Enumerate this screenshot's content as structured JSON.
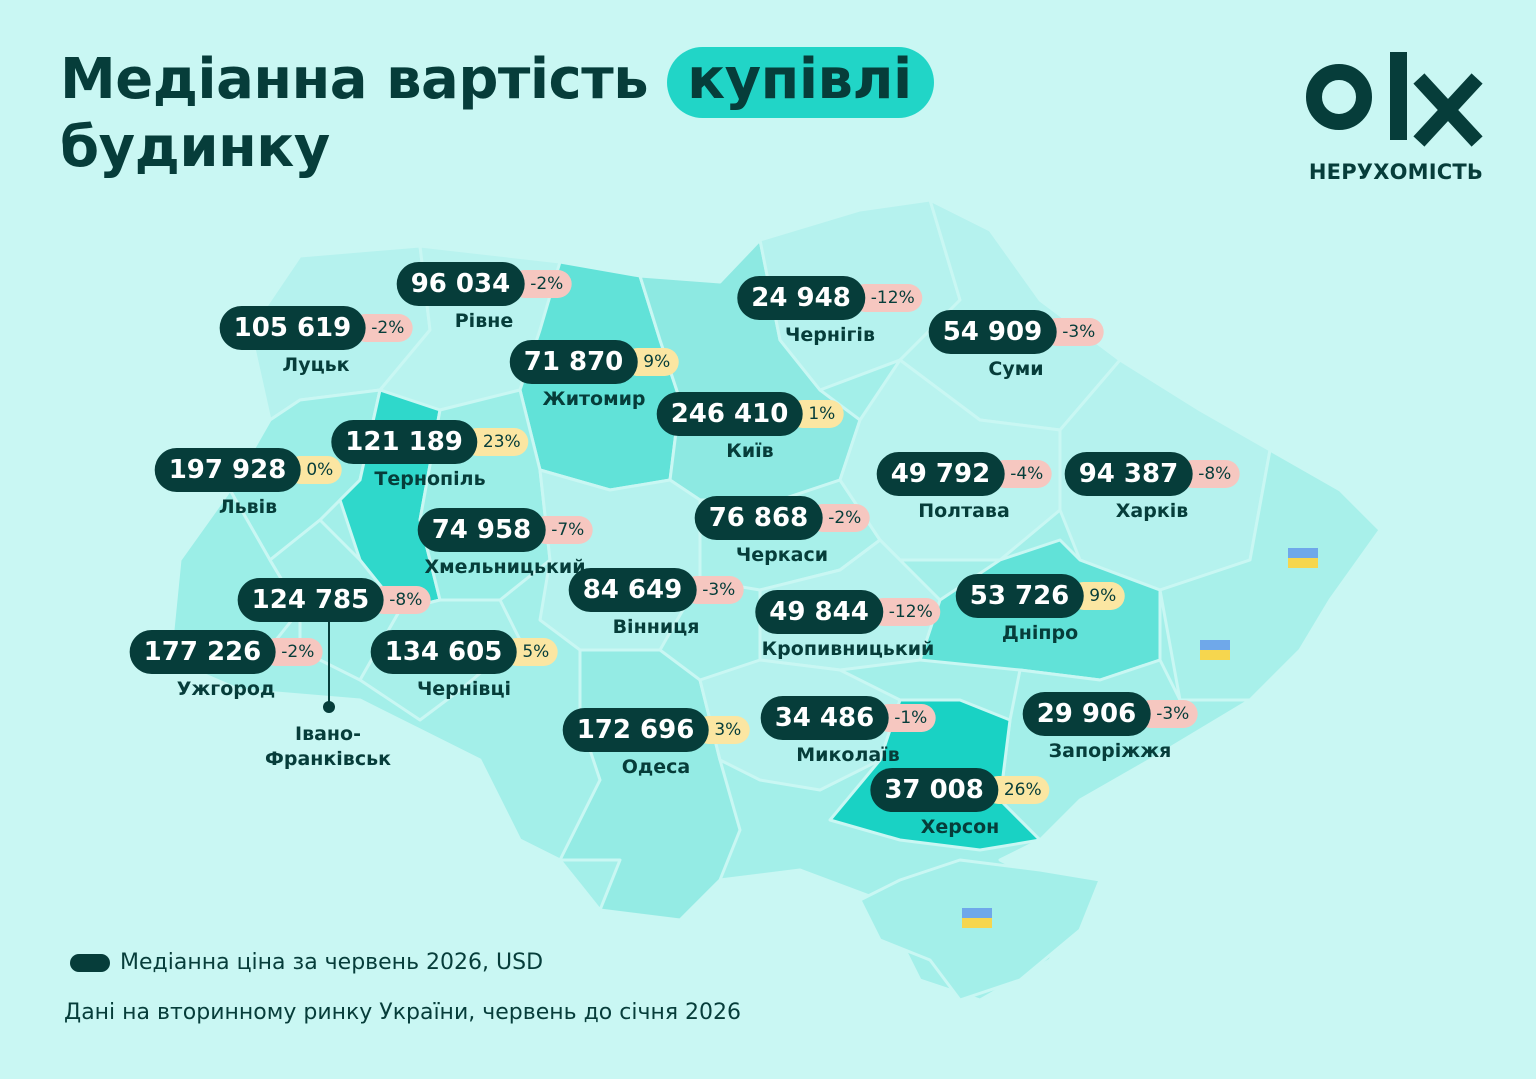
{
  "title": {
    "line1_a": "Медіанна вартість",
    "highlight": "купівлі",
    "line2": "будинку"
  },
  "logo": {
    "mark": "olx-logo",
    "subtitle": "НЕРУХОМІСТЬ"
  },
  "colors": {
    "dark": "#063d3a",
    "background": "#c9f7f3",
    "highlight": "#21d5c7",
    "negative_badge": "#f6c7c0",
    "positive_badge": "#fbe6a2"
  },
  "cities": [
    {
      "name": "Луцьк",
      "price": "105 619",
      "change": "-2%"
    },
    {
      "name": "Рівне",
      "price": "96 034",
      "change": "-2%"
    },
    {
      "name": "Житомир",
      "price": "71 870",
      "change": "9%"
    },
    {
      "name": "Чернігів",
      "price": "24 948",
      "change": "-12%"
    },
    {
      "name": "Суми",
      "price": "54 909",
      "change": "-3%"
    },
    {
      "name": "Київ",
      "price": "246 410",
      "change": "1%"
    },
    {
      "name": "Львів",
      "price": "197 928",
      "change": "0%"
    },
    {
      "name": "Тернопіль",
      "price": "121 189",
      "change": "23%"
    },
    {
      "name": "Полтава",
      "price": "49 792",
      "change": "-4%"
    },
    {
      "name": "Харків",
      "price": "94 387",
      "change": "-8%"
    },
    {
      "name": "Хмельницький",
      "price": "74 958",
      "change": "-7%"
    },
    {
      "name": "Черкаси",
      "price": "76 868",
      "change": "-2%"
    },
    {
      "name": "Вінниця",
      "price": "84 649",
      "change": "-3%"
    },
    {
      "name": "Кропивницький",
      "price": "49 844",
      "change": "-12%"
    },
    {
      "name": "Дніпро",
      "price": "53 726",
      "change": "9%"
    },
    {
      "name": "Ужгород",
      "price": "177 226",
      "change": "-2%"
    },
    {
      "name": "Чернівці",
      "price": "134 605",
      "change": "5%"
    },
    {
      "name": "Одеса",
      "price": "172 696",
      "change": "3%"
    },
    {
      "name": "Миколаїв",
      "price": "34 486",
      "change": "-1%"
    },
    {
      "name": "Запоріжжя",
      "price": "29 906",
      "change": "-3%"
    },
    {
      "name": "Херсон",
      "price": "37 008",
      "change": "26%"
    }
  ],
  "ivano_frankivsk": {
    "price": "124 785",
    "change": "-8%",
    "name_line1": "Івано-",
    "name_line2": "Франківськ"
  },
  "legend": {
    "label": "Медіанна ціна за червень 2026, USD"
  },
  "source": "Дані на вторинному ринку України, червень до січня 2026"
}
